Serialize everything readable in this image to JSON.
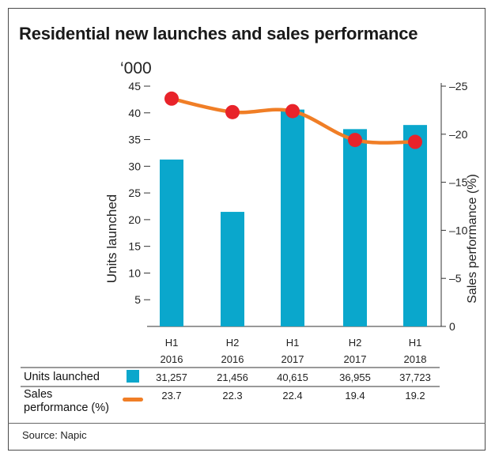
{
  "title": "Residential new launches and sales performance",
  "unit_label": "‘000",
  "source": "Source: Napic",
  "table": {
    "units_label": "Units launched",
    "sales_label_line1": "Sales",
    "sales_label_line2": "performance (%)"
  },
  "colors": {
    "bar": "#0aa7cc",
    "line": "#f07e26",
    "marker": "#e8232a"
  },
  "chart_data": {
    "type": "bar+line",
    "categories": [
      [
        "H1",
        "2016"
      ],
      [
        "H2",
        "2016"
      ],
      [
        "H1",
        "2017"
      ],
      [
        "H2",
        "2017"
      ],
      [
        "H1",
        "2018"
      ]
    ],
    "ylabel": "Units launched",
    "y2label": "Sales performance (%)",
    "ylim": [
      0,
      45
    ],
    "y2lim": [
      0,
      -25
    ],
    "yticks": [
      "5",
      "10",
      "15",
      "20",
      "25",
      "30",
      "35",
      "40",
      "45"
    ],
    "y2ticks": [
      "0",
      "–5",
      "–10",
      "–15",
      "–20",
      "–25"
    ],
    "series": [
      {
        "name": "Units launched",
        "kind": "bar",
        "values": [
          31.257,
          21.456,
          40.615,
          36.955,
          37.723
        ],
        "labels": [
          "31,257",
          "21,456",
          "40,615",
          "36,955",
          "37,723"
        ]
      },
      {
        "name": "Sales performance (%)",
        "kind": "line",
        "values": [
          23.7,
          22.3,
          22.4,
          19.4,
          19.2
        ],
        "labels": [
          "23.7",
          "22.3",
          "22.4",
          "19.4",
          "19.2"
        ]
      }
    ]
  }
}
